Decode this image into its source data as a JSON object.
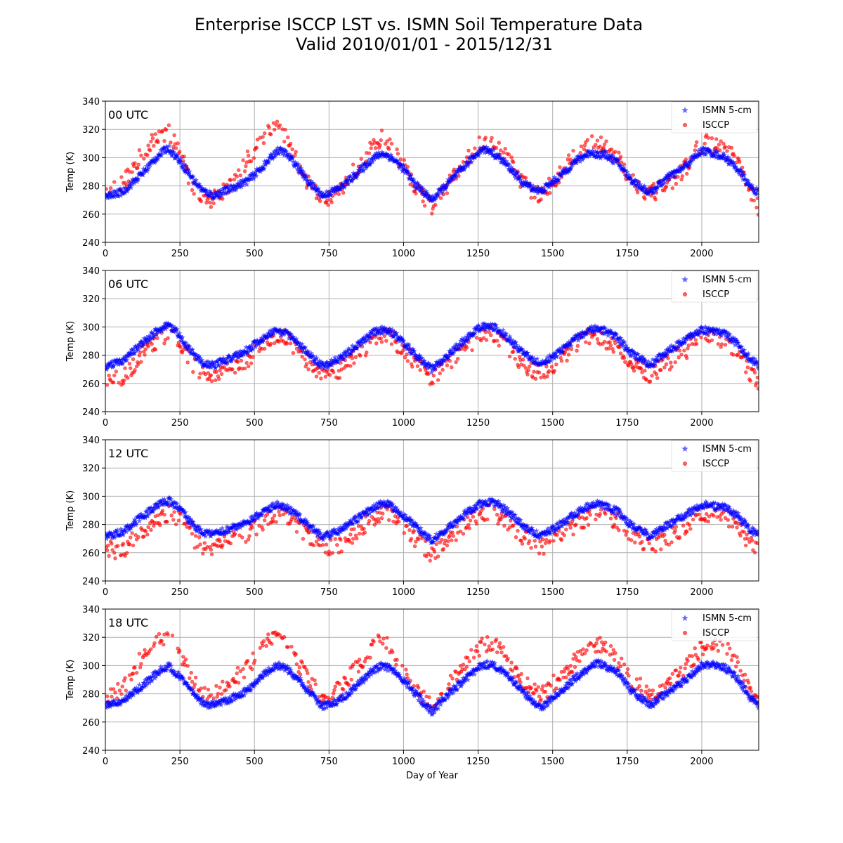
{
  "figure": {
    "title_line1": "Enterprise ISCCP LST vs. ISMN Soil Temperature Data",
    "title_line2": "Valid 2010/01/01 - 2015/12/31",
    "xlabel": "Day of Year",
    "colors": {
      "ismn": "#0000ff",
      "isccp": "#ff0000",
      "grid": "#b0b0b0"
    }
  },
  "chart_data": [
    {
      "type": "scatter",
      "panel_label": "00 UTC",
      "ylabel": "Temp (K)",
      "xlim": [
        0,
        2191
      ],
      "ylim": [
        240,
        340
      ],
      "xticks": [
        0,
        250,
        500,
        750,
        1000,
        1250,
        1500,
        1750,
        2000
      ],
      "yticks": [
        240,
        260,
        280,
        300,
        320,
        340
      ],
      "grid": true,
      "legend_position": "top-right",
      "series": [
        {
          "name": "ISMN 5-cm",
          "marker": "star",
          "x": [
            0,
            60,
            120,
            180,
            210,
            240,
            270,
            300,
            330,
            365,
            420,
            480,
            540,
            575,
            600,
            640,
            680,
            730,
            790,
            850,
            900,
            930,
            960,
            1000,
            1040,
            1095,
            1150,
            1210,
            1260,
            1290,
            1320,
            1360,
            1400,
            1460,
            1520,
            1580,
            1630,
            1650,
            1680,
            1720,
            1760,
            1826,
            1880,
            1940,
            2000,
            2040,
            2080,
            2120,
            2160,
            2190
          ],
          "y": [
            272,
            276,
            288,
            302,
            307,
            300,
            292,
            283,
            276,
            273,
            278,
            284,
            296,
            305,
            304,
            295,
            283,
            273,
            279,
            290,
            300,
            303,
            300,
            292,
            281,
            270,
            282,
            295,
            306,
            305,
            300,
            292,
            282,
            276,
            286,
            298,
            304,
            302,
            302,
            296,
            285,
            275,
            285,
            293,
            305,
            303,
            300,
            292,
            280,
            275
          ]
        },
        {
          "name": "ISCCP",
          "marker": "circle",
          "x": [
            0,
            60,
            120,
            180,
            210,
            240,
            270,
            300,
            330,
            365,
            420,
            480,
            540,
            560,
            600,
            640,
            680,
            730,
            790,
            850,
            900,
            930,
            960,
            1000,
            1040,
            1095,
            1150,
            1210,
            1260,
            1290,
            1320,
            1360,
            1400,
            1460,
            1520,
            1580,
            1630,
            1650,
            1680,
            1720,
            1760,
            1826,
            1880,
            1940,
            2000,
            2040,
            2080,
            2120,
            2160,
            2190
          ],
          "y": [
            272,
            282,
            302,
            316,
            318,
            310,
            292,
            278,
            268,
            272,
            280,
            300,
            318,
            322,
            316,
            298,
            282,
            270,
            278,
            295,
            310,
            314,
            306,
            294,
            278,
            265,
            280,
            300,
            310,
            311,
            308,
            296,
            282,
            272,
            288,
            302,
            311,
            309,
            308,
            300,
            285,
            274,
            280,
            291,
            311,
            309,
            306,
            296,
            278,
            265
          ]
        }
      ]
    },
    {
      "type": "scatter",
      "panel_label": "06 UTC",
      "ylabel": "Temp (K)",
      "xlim": [
        0,
        2191
      ],
      "ylim": [
        240,
        340
      ],
      "xticks": [
        0,
        250,
        500,
        750,
        1000,
        1250,
        1500,
        1750,
        2000
      ],
      "yticks": [
        240,
        260,
        280,
        300,
        320,
        340
      ],
      "grid": true,
      "legend_position": "top-right",
      "series": [
        {
          "name": "ISMN 5-cm",
          "marker": "star",
          "x": [
            0,
            60,
            120,
            180,
            210,
            240,
            270,
            300,
            330,
            365,
            420,
            480,
            540,
            575,
            600,
            640,
            680,
            730,
            790,
            850,
            900,
            930,
            960,
            1000,
            1040,
            1095,
            1150,
            1210,
            1260,
            1290,
            1320,
            1360,
            1400,
            1460,
            1520,
            1580,
            1630,
            1650,
            1680,
            1720,
            1760,
            1826,
            1880,
            1940,
            2000,
            2040,
            2080,
            2120,
            2160,
            2190
          ],
          "y": [
            272,
            276,
            288,
            298,
            301,
            296,
            288,
            279,
            274,
            273,
            278,
            284,
            294,
            298,
            296,
            290,
            281,
            272,
            278,
            288,
            296,
            298,
            296,
            289,
            280,
            270,
            280,
            292,
            300,
            301,
            298,
            290,
            281,
            274,
            282,
            292,
            299,
            299,
            297,
            292,
            282,
            273,
            282,
            290,
            298,
            297,
            295,
            288,
            278,
            273
          ]
        },
        {
          "name": "ISCCP",
          "marker": "circle",
          "x": [
            0,
            60,
            120,
            180,
            210,
            240,
            270,
            300,
            330,
            365,
            420,
            480,
            540,
            575,
            600,
            640,
            680,
            730,
            790,
            850,
            900,
            930,
            960,
            1000,
            1040,
            1095,
            1150,
            1210,
            1260,
            1290,
            1320,
            1360,
            1400,
            1460,
            1520,
            1580,
            1630,
            1650,
            1680,
            1720,
            1760,
            1826,
            1880,
            1940,
            2000,
            2040,
            2080,
            2120,
            2160,
            2190
          ],
          "y": [
            262,
            264,
            280,
            292,
            296,
            290,
            282,
            272,
            266,
            265,
            270,
            278,
            290,
            294,
            292,
            284,
            276,
            266,
            270,
            282,
            290,
            294,
            292,
            284,
            274,
            262,
            274,
            286,
            294,
            295,
            292,
            284,
            274,
            266,
            276,
            287,
            294,
            293,
            290,
            286,
            276,
            266,
            274,
            282,
            293,
            292,
            290,
            282,
            268,
            262
          ]
        }
      ]
    },
    {
      "type": "scatter",
      "panel_label": "12 UTC",
      "ylabel": "Temp (K)",
      "xlim": [
        0,
        2191
      ],
      "ylim": [
        240,
        340
      ],
      "xticks": [
        0,
        250,
        500,
        750,
        1000,
        1250,
        1500,
        1750,
        2000
      ],
      "yticks": [
        240,
        260,
        280,
        300,
        320,
        340
      ],
      "grid": true,
      "legend_position": "top-right",
      "series": [
        {
          "name": "ISMN 5-cm",
          "marker": "star",
          "x": [
            0,
            60,
            120,
            180,
            210,
            240,
            270,
            300,
            330,
            365,
            420,
            480,
            540,
            575,
            600,
            640,
            680,
            730,
            790,
            850,
            900,
            930,
            960,
            1000,
            1040,
            1095,
            1150,
            1210,
            1260,
            1290,
            1320,
            1360,
            1400,
            1460,
            1520,
            1580,
            1630,
            1650,
            1680,
            1720,
            1760,
            1826,
            1880,
            1940,
            2000,
            2040,
            2080,
            2120,
            2160,
            2190
          ],
          "y": [
            271,
            275,
            285,
            294,
            297,
            293,
            286,
            278,
            274,
            273,
            277,
            282,
            290,
            294,
            293,
            287,
            280,
            271,
            276,
            285,
            292,
            295,
            293,
            286,
            279,
            268,
            278,
            288,
            295,
            296,
            294,
            287,
            279,
            272,
            279,
            288,
            294,
            295,
            293,
            289,
            280,
            272,
            279,
            286,
            294,
            293,
            292,
            286,
            277,
            272
          ]
        },
        {
          "name": "ISCCP",
          "marker": "circle",
          "x": [
            0,
            60,
            120,
            180,
            210,
            240,
            270,
            300,
            330,
            365,
            420,
            480,
            540,
            575,
            600,
            640,
            680,
            730,
            790,
            850,
            900,
            930,
            960,
            1000,
            1040,
            1095,
            1150,
            1210,
            1260,
            1290,
            1320,
            1360,
            1400,
            1460,
            1520,
            1580,
            1630,
            1650,
            1680,
            1720,
            1760,
            1826,
            1880,
            1940,
            2000,
            2040,
            2080,
            2120,
            2160,
            2190
          ],
          "y": [
            262,
            262,
            274,
            284,
            288,
            285,
            278,
            268,
            265,
            264,
            268,
            274,
            283,
            287,
            286,
            280,
            272,
            262,
            266,
            276,
            285,
            288,
            286,
            279,
            270,
            259,
            270,
            281,
            288,
            289,
            286,
            280,
            271,
            263,
            270,
            280,
            287,
            288,
            285,
            282,
            272,
            264,
            270,
            278,
            288,
            288,
            285,
            279,
            266,
            261
          ]
        }
      ]
    },
    {
      "type": "scatter",
      "panel_label": "18 UTC",
      "ylabel": "Temp (K)",
      "xlabel": "Day of Year",
      "xlim": [
        0,
        2191
      ],
      "ylim": [
        240,
        340
      ],
      "xticks": [
        0,
        250,
        500,
        750,
        1000,
        1250,
        1500,
        1750,
        2000
      ],
      "yticks": [
        240,
        260,
        280,
        300,
        320,
        340
      ],
      "grid": true,
      "legend_position": "top-right",
      "series": [
        {
          "name": "ISMN 5-cm",
          "marker": "star",
          "x": [
            0,
            60,
            120,
            180,
            210,
            240,
            270,
            300,
            330,
            365,
            420,
            480,
            540,
            575,
            600,
            640,
            680,
            730,
            790,
            850,
            900,
            930,
            960,
            1000,
            1040,
            1095,
            1150,
            1210,
            1260,
            1290,
            1320,
            1360,
            1400,
            1460,
            1520,
            1580,
            1630,
            1650,
            1680,
            1720,
            1760,
            1826,
            1880,
            1940,
            2000,
            2040,
            2080,
            2120,
            2160,
            2190
          ],
          "y": [
            272,
            275,
            285,
            296,
            300,
            294,
            287,
            278,
            273,
            272,
            276,
            283,
            295,
            300,
            299,
            292,
            282,
            271,
            276,
            287,
            297,
            300,
            297,
            290,
            280,
            267,
            280,
            291,
            300,
            301,
            298,
            291,
            281,
            270,
            280,
            292,
            300,
            302,
            299,
            295,
            283,
            272,
            280,
            289,
            300,
            301,
            298,
            291,
            278,
            271
          ]
        },
        {
          "name": "ISCCP",
          "marker": "circle",
          "x": [
            0,
            60,
            120,
            180,
            210,
            240,
            270,
            300,
            330,
            365,
            420,
            480,
            540,
            560,
            600,
            640,
            680,
            730,
            790,
            850,
            900,
            930,
            960,
            1000,
            1040,
            1095,
            1150,
            1210,
            1260,
            1290,
            1320,
            1360,
            1400,
            1460,
            1520,
            1580,
            1630,
            1650,
            1680,
            1720,
            1760,
            1826,
            1880,
            1940,
            2000,
            2040,
            2080,
            2120,
            2160,
            2190
          ],
          "y": [
            276,
            285,
            305,
            318,
            321,
            316,
            300,
            288,
            280,
            280,
            288,
            300,
            316,
            320,
            318,
            304,
            290,
            278,
            284,
            300,
            314,
            318,
            310,
            298,
            284,
            272,
            286,
            302,
            314,
            316,
            312,
            300,
            288,
            280,
            290,
            304,
            314,
            316,
            312,
            304,
            290,
            280,
            286,
            298,
            312,
            314,
            312,
            300,
            284,
            272
          ]
        }
      ]
    }
  ]
}
